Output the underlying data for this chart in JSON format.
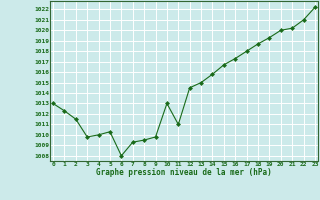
{
  "x": [
    0,
    1,
    2,
    3,
    4,
    5,
    6,
    7,
    8,
    9,
    10,
    11,
    12,
    13,
    14,
    15,
    16,
    17,
    18,
    19,
    20,
    21,
    22,
    23
  ],
  "y": [
    1013.0,
    1012.3,
    1011.5,
    1009.8,
    1010.0,
    1010.3,
    1008.0,
    1009.3,
    1009.5,
    1009.8,
    1013.0,
    1011.0,
    1014.5,
    1015.0,
    1015.8,
    1016.7,
    1017.3,
    1018.0,
    1018.7,
    1019.3,
    1020.0,
    1020.2,
    1021.0,
    1022.2
  ],
  "line_color": "#1a6b1a",
  "marker": "D",
  "marker_size": 2.0,
  "bg_color": "#cceaea",
  "grid_color": "#ffffff",
  "xlabel": "Graphe pression niveau de la mer (hPa)",
  "xlabel_color": "#1a6b1a",
  "tick_color": "#1a6b1a",
  "axis_color": "#336633",
  "ylim_min": 1007.5,
  "ylim_max": 1022.8,
  "ytick_min": 1008,
  "ytick_max": 1022,
  "ytick_step": 1,
  "xlim_min": -0.3,
  "xlim_max": 23.3
}
